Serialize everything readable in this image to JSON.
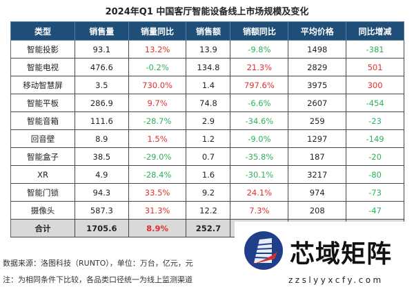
{
  "title": "2024年Q1 中国客厅智能设备线上市场规模及变化",
  "headers": [
    "类型",
    "销售量",
    "销量同比",
    "销售额",
    "销额同比",
    "平均价格",
    "同比增减"
  ],
  "rows": [
    [
      "智能投影",
      "93.1",
      "13.2%",
      "13.9",
      "-9.8%",
      "1498",
      "-381"
    ],
    [
      "智能电视",
      "476.6",
      "-0.2%",
      "134.8",
      "21.3%",
      "2829",
      "501"
    ],
    [
      "移动智慧屏",
      "3.5",
      "730.0%",
      "1.4",
      "797.6%",
      "3975",
      "300"
    ],
    [
      "智能平板",
      "286.9",
      "9.7%",
      "74.8",
      "-6.6%",
      "2607",
      "-454"
    ],
    [
      "智能音箱",
      "111.6",
      "-28.7%",
      "2.9",
      "-34.6%",
      "259",
      "-23"
    ],
    [
      "回音壁",
      "8.9",
      "1.5%",
      "1.2",
      "-9.0%",
      "1297",
      "-149"
    ],
    [
      "智能盒子",
      "38.5",
      "-29.0%",
      "0.7",
      "-35.8%",
      "187",
      "-20"
    ],
    [
      "XR",
      "4.9",
      "-28.4%",
      "1.6",
      "-30.1%",
      "3217",
      "-80"
    ],
    [
      "智能门锁",
      "94.3",
      "33.5%",
      "9.2",
      "24.1%",
      "974",
      "-73"
    ],
    [
      "摄像头",
      "587.3",
      "31.3%",
      "12.2",
      "7.3%",
      "208",
      "-47"
    ]
  ],
  "total": [
    "合计",
    "1705.6",
    "8.9%",
    "252.7"
  ],
  "notes": [
    "数据来源：洛图科技（RUNTO），单位：万台，亿元，元",
    "注：为相同条件下比较，各品类口径统一为线上监测渠道"
  ],
  "watermark": {
    "text": "芯域矩阵",
    "url": "zzslyyxcfy.com"
  },
  "colors": {
    "header": "#1f4e79",
    "positive": "#e03030",
    "negative": "#2fb05a",
    "total_row": "#d9d9d9"
  }
}
